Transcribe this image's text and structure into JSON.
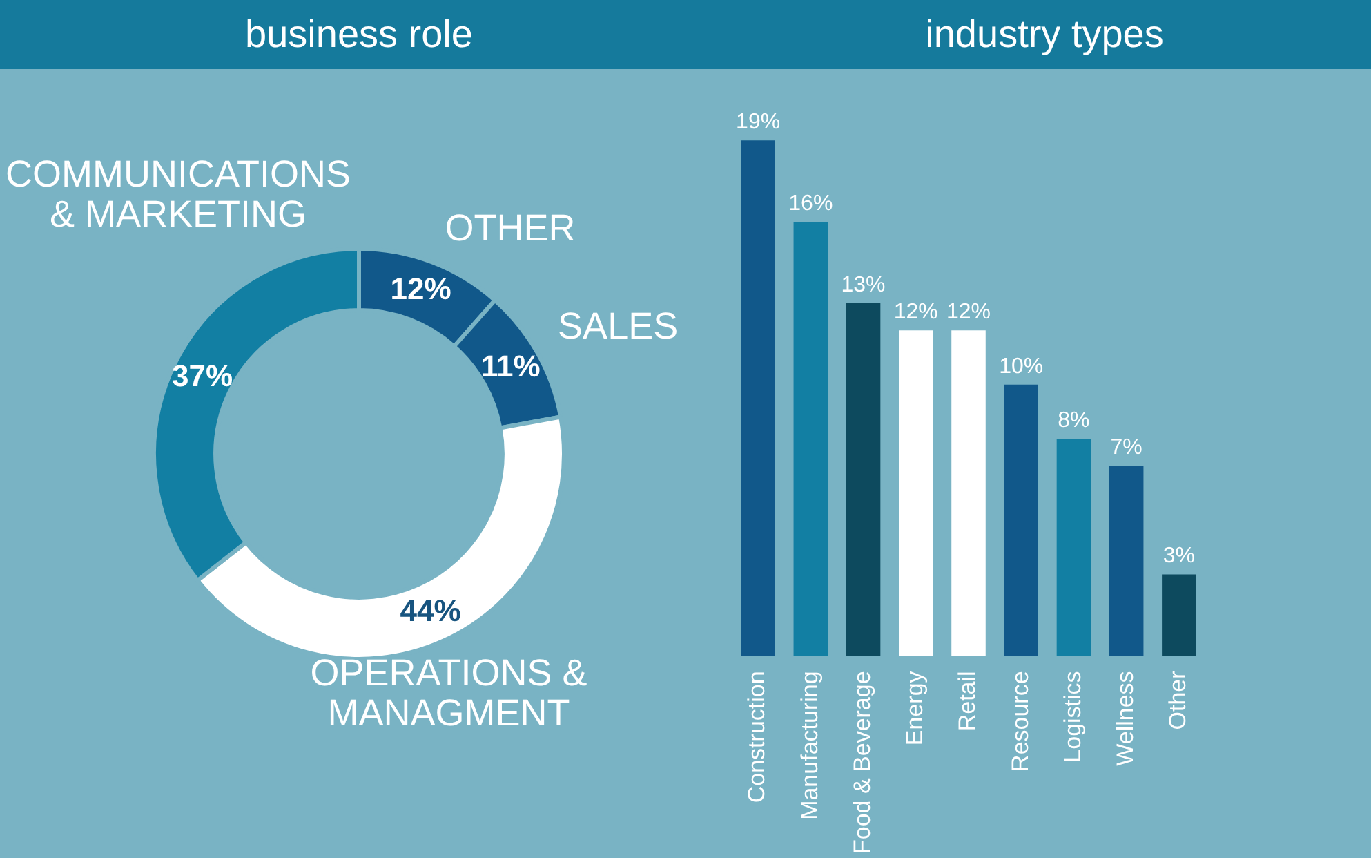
{
  "chart_data": [
    {
      "type": "donut",
      "title": "business role",
      "categories": [
        "OTHER",
        "SALES",
        "OPERATIONS & MANAGMENT",
        "COMMUNICATIONS & MARKETING"
      ],
      "values": [
        12,
        11,
        44,
        37
      ],
      "colors": [
        "#11588a",
        "#11588a",
        "#ffffff",
        "#127fa3"
      ],
      "value_labels": [
        "12%",
        "11%",
        "44%",
        "37%"
      ]
    },
    {
      "type": "bar",
      "title": "industry types",
      "categories": [
        "Construction",
        "Manufacturing",
        "Food & Beverage",
        "Energy",
        "Retail",
        "Resource",
        "Logistics",
        "Wellness",
        "Other"
      ],
      "values": [
        19,
        16,
        13,
        12,
        12,
        10,
        8,
        7,
        3
      ],
      "colors": [
        "#11588a",
        "#127fa3",
        "#0d4a5e",
        "#ffffff",
        "#ffffff",
        "#11588a",
        "#127fa3",
        "#11588a",
        "#0d4a5e"
      ],
      "value_labels": [
        "19%",
        "16%",
        "13%",
        "12%",
        "12%",
        "10%",
        "8%",
        "7%",
        "3%"
      ]
    }
  ]
}
